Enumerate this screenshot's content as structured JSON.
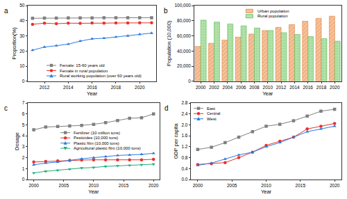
{
  "chart_data": [
    {
      "type": "line",
      "title": "a",
      "x_label": "Year",
      "y_label": "Proportion(%)",
      "x": [
        2011,
        2012,
        2013,
        2014,
        2015,
        2016,
        2017,
        2018,
        2019,
        2020,
        2021
      ],
      "series": [
        {
          "name": "Female: 15-60 years old",
          "color": "#7f7f7f",
          "marker": "square",
          "values": [
            41.6,
            41.7,
            41.7,
            41.8,
            41.8,
            41.8,
            41.9,
            41.9,
            42.0,
            42.0,
            42.0
          ]
        },
        {
          "name": "Female in rural population",
          "color": "#e8312a",
          "marker": "circle",
          "values": [
            37.6,
            38.4,
            38.0,
            38.4,
            38.3,
            38.5,
            38.4,
            38.5,
            38.5,
            38.6,
            38.6
          ]
        },
        {
          "name": "Rural working population (over 60 years old)",
          "color": "#2b7be0",
          "marker": "triangle-up",
          "values": [
            20.5,
            22.6,
            23.5,
            24.5,
            26.5,
            28.0,
            28.4,
            29.2,
            30.0,
            31.0,
            31.8
          ]
        }
      ],
      "xlim": [
        2010.6,
        2021.4
      ],
      "ylim": [
        0,
        50
      ],
      "xticks": [
        2012,
        2014,
        2016,
        2018,
        2020
      ],
      "yticks": [
        0,
        10,
        20,
        30,
        40,
        50
      ],
      "grid": false,
      "legend": "bottom right"
    },
    {
      "type": "bar",
      "title": "b",
      "x_label": "Year",
      "y_label": "Population (10,000)",
      "categories": [
        "2000",
        "2002",
        "2004",
        "2006",
        "2008",
        "2010",
        "2012",
        "2014",
        "2016",
        "2018",
        "2020"
      ],
      "series": [
        {
          "name": "Urban population",
          "color": "#f7c39c",
          "values": [
            46000,
            50200,
            54300,
            58300,
            62400,
            67000,
            71200,
            74900,
            79300,
            83100,
            86000
          ]
        },
        {
          "name": "Rural population",
          "color": "#b9e4ae",
          "values": [
            80800,
            78200,
            75700,
            73200,
            70400,
            67100,
            64200,
            61900,
            59000,
            56400,
            53000
          ]
        }
      ],
      "ylim": [
        0,
        100000
      ],
      "yticks": [
        0,
        {
          "value": 20000,
          "label": "20,000"
        },
        {
          "value": 40000,
          "label": "40,000"
        },
        {
          "value": 60000,
          "label": "60,000"
        },
        {
          "value": 80000,
          "label": "80,000"
        },
        {
          "value": 100000,
          "label": "100,000"
        }
      ],
      "grid": false,
      "legend": "top"
    },
    {
      "type": "line",
      "title": "c",
      "x_label": "Year",
      "y_label": "Dosage",
      "x": [
        2000,
        2002,
        2004,
        2006,
        2008,
        2010,
        2012,
        2014,
        2016,
        2018,
        2020
      ],
      "series": [
        {
          "name": "Fertilizer (10 million tons)",
          "color": "#7f7f7f",
          "marker": "square",
          "values": [
            4.55,
            4.8,
            4.85,
            4.9,
            4.95,
            5.05,
            5.2,
            5.4,
            5.6,
            5.65,
            6.0
          ]
        },
        {
          "name": "Pesticides (10,000 tons)",
          "color": "#e8312a",
          "marker": "circle",
          "values": [
            1.6,
            1.65,
            1.7,
            1.75,
            1.78,
            1.8,
            1.8,
            1.8,
            1.8,
            1.8,
            1.85
          ]
        },
        {
          "name": "Plastic film (10,000 tons)",
          "color": "#2b7be0",
          "marker": "triangle-up",
          "values": [
            1.35,
            1.5,
            1.6,
            1.75,
            1.9,
            2.0,
            2.1,
            2.2,
            2.25,
            2.3,
            2.4
          ]
        },
        {
          "name": "Agricultural plastic film (10,000 tons)",
          "color": "#1fae7a",
          "marker": "triangle-down",
          "values": [
            0.6,
            0.75,
            0.85,
            0.95,
            1.05,
            1.1,
            1.2,
            1.25,
            1.3,
            1.35,
            1.4
          ]
        }
      ],
      "xlim": [
        1999,
        2021
      ],
      "ylim": [
        0,
        7
      ],
      "xticks": [
        2000,
        2005,
        2010,
        2015,
        2020
      ],
      "yticks": [
        0,
        1,
        2,
        3,
        4,
        5,
        6,
        7
      ],
      "grid": false,
      "legend": "right"
    },
    {
      "type": "line",
      "title": "d",
      "x_label": "Year",
      "y_label": "GDP per capita",
      "x": [
        2000,
        2002,
        2004,
        2006,
        2008,
        2010,
        2012,
        2014,
        2016,
        2018,
        2020
      ],
      "series": [
        {
          "name": "East",
          "color": "#7f7f7f",
          "marker": "square",
          "values": [
            1.1,
            1.18,
            1.35,
            1.55,
            1.75,
            1.95,
            2.02,
            2.15,
            2.32,
            2.5,
            2.57
          ]
        },
        {
          "name": "Central",
          "color": "#e8312a",
          "marker": "circle",
          "values": [
            0.55,
            0.58,
            0.62,
            0.8,
            1.0,
            1.25,
            1.4,
            1.55,
            1.85,
            1.95,
            2.05
          ]
        },
        {
          "name": "West",
          "color": "#2b7be0",
          "marker": "triangle-up",
          "values": [
            0.52,
            0.6,
            0.75,
            0.9,
            1.0,
            1.2,
            1.35,
            1.55,
            1.75,
            1.85,
            1.95
          ]
        }
      ],
      "xlim": [
        1999,
        2021
      ],
      "ylim": [
        0,
        2.8
      ],
      "xticks": [
        2000,
        2005,
        2010,
        2015,
        2020
      ],
      "yticks": [
        {
          "value": 0,
          "label": "0.0"
        },
        0.4,
        0.8,
        1.2,
        1.6,
        {
          "value": 2,
          "label": "2.0"
        },
        2.4,
        2.8
      ],
      "grid": false,
      "legend": "top left"
    }
  ]
}
